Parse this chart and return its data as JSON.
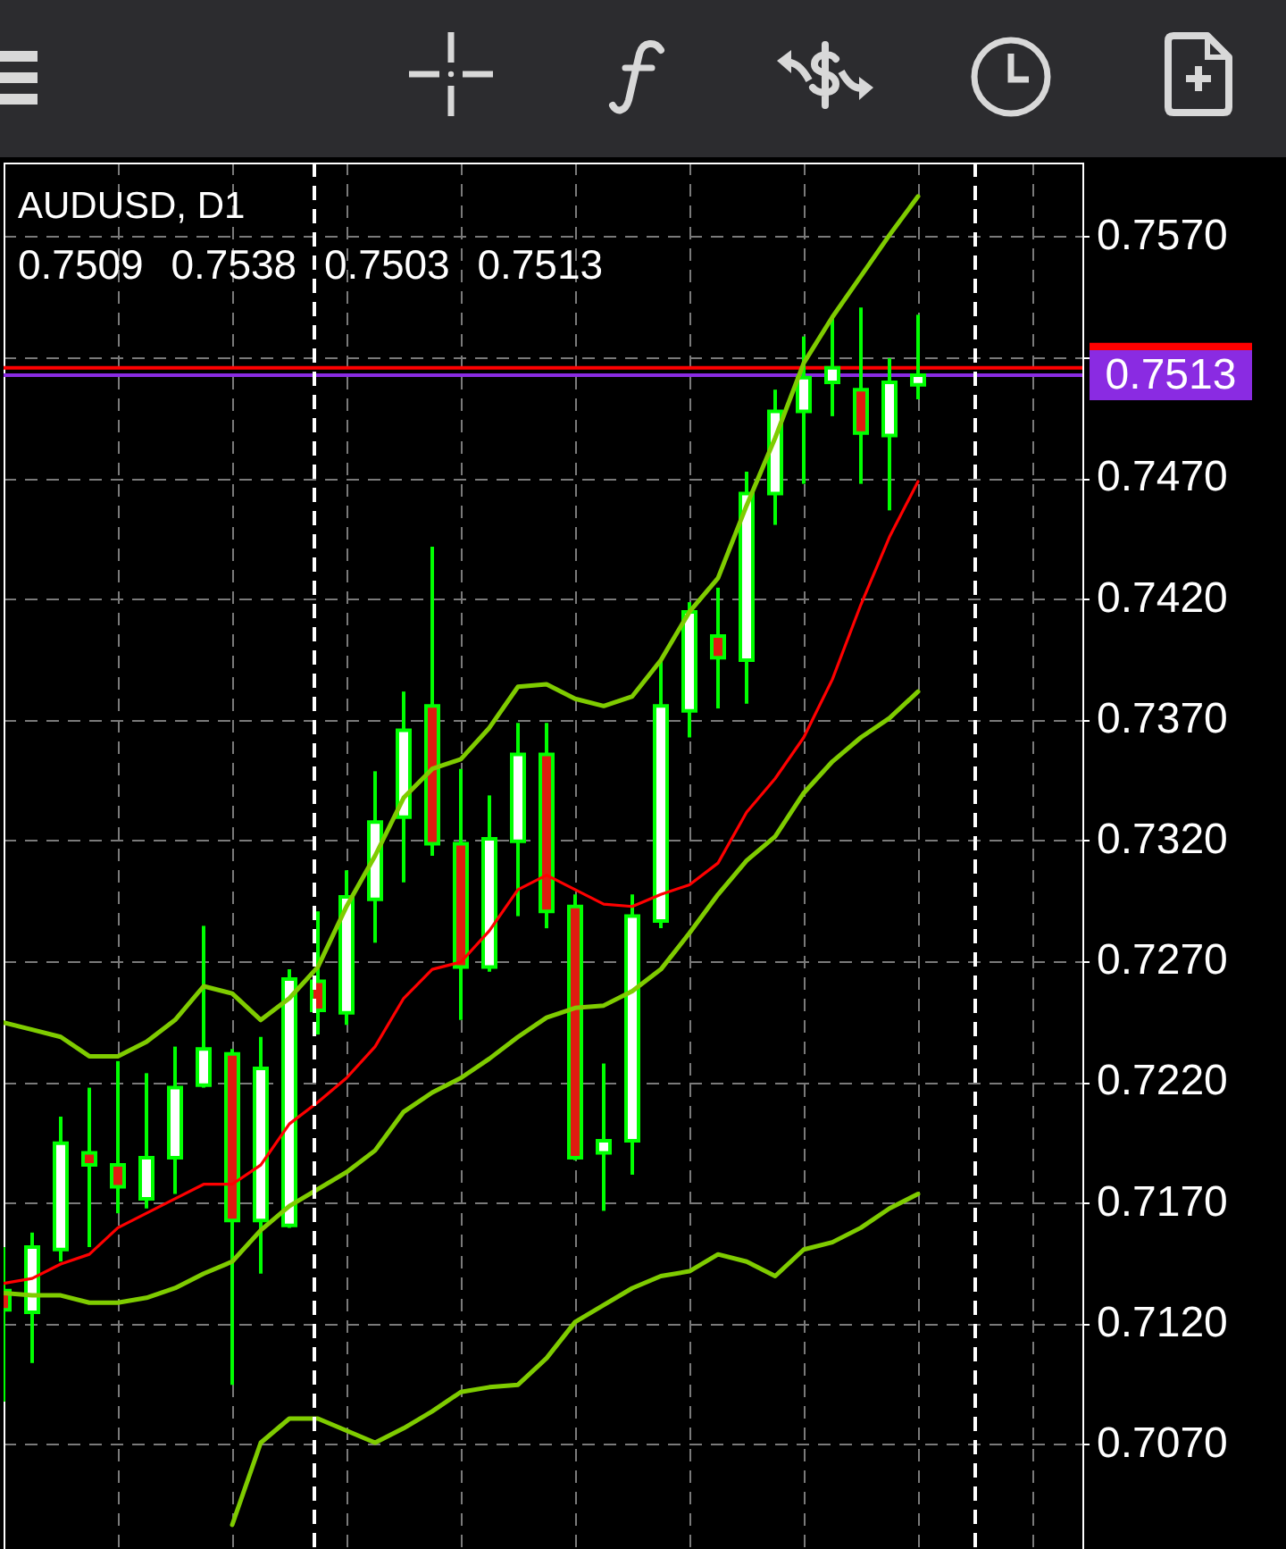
{
  "chart_data": {
    "type": "candlestick",
    "title": "AUDUSD, D1",
    "subtitle": "0.7509 0.7538 0.7503 0.7513",
    "categories": [
      null,
      null,
      null,
      null,
      null,
      null,
      null,
      null,
      null,
      null,
      null,
      null,
      null,
      null,
      null,
      null,
      null,
      null,
      null,
      null,
      null,
      null,
      null,
      null,
      null,
      null,
      null,
      null,
      null,
      null,
      null,
      null,
      null
    ],
    "ohlc": [
      [
        0.7134,
        0.7152,
        0.7088,
        0.7126
      ],
      [
        0.7125,
        0.7158,
        0.7104,
        0.7152
      ],
      [
        0.7151,
        0.7206,
        0.7146,
        0.7195
      ],
      [
        0.7191,
        0.7218,
        0.7152,
        0.7186
      ],
      [
        0.7186,
        0.7229,
        0.7166,
        0.7177
      ],
      [
        0.7172,
        0.7224,
        0.7168,
        0.7189
      ],
      [
        0.7189,
        0.7235,
        0.7174,
        0.7218
      ],
      [
        0.7219,
        0.7285,
        0.7218,
        0.7234
      ],
      [
        0.7232,
        0.7234,
        0.7095,
        0.7163
      ],
      [
        0.7163,
        0.7239,
        0.7141,
        0.7226
      ],
      [
        0.7161,
        0.7267,
        0.716,
        0.7263
      ],
      [
        0.7262,
        0.7291,
        0.724,
        0.725
      ],
      [
        0.7249,
        0.7308,
        0.7244,
        0.7297
      ],
      [
        0.7296,
        0.7349,
        0.7278,
        0.7328
      ],
      [
        0.733,
        0.7382,
        0.7303,
        0.7366
      ],
      [
        0.7376,
        0.7442,
        0.7314,
        0.7319
      ],
      [
        0.7319,
        0.735,
        0.7246,
        0.7268
      ],
      [
        0.7268,
        0.7339,
        0.7266,
        0.7321
      ],
      [
        0.732,
        0.7369,
        0.7289,
        0.7356
      ],
      [
        0.7356,
        0.7369,
        0.7284,
        0.7291
      ],
      [
        0.7293,
        0.7298,
        0.7188,
        0.7189
      ],
      [
        0.7191,
        0.7228,
        0.7167,
        0.7196
      ],
      [
        0.7196,
        0.7298,
        0.7182,
        0.7289
      ],
      [
        0.7287,
        0.7395,
        0.7284,
        0.7376
      ],
      [
        0.7374,
        0.7419,
        0.7363,
        0.7415
      ],
      [
        0.7405,
        0.7425,
        0.7375,
        0.7396
      ],
      [
        0.7395,
        0.7473,
        0.7377,
        0.7464
      ],
      [
        0.7464,
        0.7507,
        0.7451,
        0.7498
      ],
      [
        0.7498,
        0.7529,
        0.7468,
        0.7512
      ],
      [
        0.751,
        0.7537,
        0.7496,
        0.7516
      ],
      [
        0.7507,
        0.7541,
        0.7468,
        0.7489
      ],
      [
        0.7488,
        0.752,
        0.7457,
        0.751
      ],
      [
        0.7509,
        0.7538,
        0.7503,
        0.7513
      ]
    ],
    "colors": [
      "#e01b10",
      "#ffffff",
      "#ffffff",
      "#e01b10",
      "#e01b10",
      "#ffffff",
      "#ffffff",
      "#ffffff",
      "#e01b10",
      "#ffffff",
      "#ffffff",
      "#e01b10",
      "#ffffff",
      "#ffffff",
      "#ffffff",
      "#e01b10",
      "#e01b10",
      "#ffffff",
      "#ffffff",
      "#e01b10",
      "#e01b10",
      "#ffffff",
      "#ffffff",
      "#ffffff",
      "#ffffff",
      "#e01b10",
      "#ffffff",
      "#ffffff",
      "#ffffff",
      "#ffffff",
      "#e01b10",
      "#ffffff",
      "#ffffff"
    ],
    "color": "#00ff00",
    "series": [
      {
        "type": "line",
        "color": "#7fcc00",
        "values": [
          0.7245,
          0.7242,
          0.7239,
          0.7231,
          0.7231,
          0.7237,
          0.7246,
          0.726,
          0.7257,
          0.7246,
          0.7255,
          0.7268,
          0.7293,
          0.7314,
          0.7338,
          0.735,
          0.7354,
          0.7367,
          0.7384,
          0.7385,
          0.7379,
          0.7376,
          0.738,
          0.7395,
          0.7415,
          0.7429,
          0.7459,
          0.7487,
          0.7518,
          0.7537,
          0.7554,
          0.7571,
          0.7587
        ]
      },
      {
        "type": "line",
        "color": "#7fcc00",
        "values": [
          0.7133,
          0.7132,
          0.7132,
          0.7129,
          0.7129,
          0.7131,
          0.7135,
          0.7141,
          0.7146,
          0.7159,
          0.7169,
          0.7176,
          0.7183,
          0.7192,
          0.7208,
          0.7216,
          0.7222,
          0.723,
          0.7239,
          0.7247,
          0.7251,
          0.7252,
          0.7258,
          0.7267,
          0.7282,
          0.7298,
          0.7312,
          0.7322,
          0.734,
          0.7353,
          0.7363,
          0.7371,
          0.7382
        ]
      },
      {
        "type": "line",
        "color": "#7fcc00",
        "values": [
          null,
          null,
          null,
          null,
          null,
          null,
          null,
          null,
          0.7037,
          0.7071,
          0.7081,
          0.7081,
          0.7076,
          0.7071,
          0.7077,
          0.7084,
          0.7092,
          0.7094,
          0.7095,
          0.7106,
          0.7121,
          0.7128,
          0.7135,
          0.714,
          0.7142,
          0.7149,
          0.7146,
          0.714,
          0.7151,
          0.7154,
          0.716,
          0.7168,
          0.7174
        ]
      },
      {
        "type": "line",
        "color": "#ff0000",
        "values": [
          0.7137,
          0.7139,
          0.7145,
          0.7149,
          0.716,
          0.7166,
          0.7172,
          0.7178,
          0.7178,
          0.7186,
          0.7203,
          0.7212,
          0.7222,
          0.7235,
          0.7255,
          0.7267,
          0.727,
          0.7283,
          0.73,
          0.7306,
          0.73,
          0.7294,
          0.7293,
          0.7298,
          0.7302,
          0.7311,
          0.7332,
          0.7346,
          0.7363,
          0.7387,
          0.7418,
          0.7446,
          0.7469
        ]
      }
    ],
    "ylim": [
      0.7027,
      0.7601
    ],
    "yticks": [
      {
        "value": 0.707,
        "label": "0.7070"
      },
      {
        "value": 0.712,
        "label": "0.7120"
      },
      {
        "value": 0.717,
        "label": "0.7170"
      },
      {
        "value": 0.722,
        "label": "0.7220"
      },
      {
        "value": 0.727,
        "label": "0.7270"
      },
      {
        "value": 0.732,
        "label": "0.7320"
      },
      {
        "value": 0.737,
        "label": "0.7370"
      },
      {
        "value": 0.742,
        "label": "0.7420"
      },
      {
        "value": 0.747,
        "label": "0.7470"
      },
      {
        "value": 0.752,
        "label": null
      },
      {
        "value": 0.757,
        "label": "0.7570"
      }
    ],
    "tick_labels": "y",
    "grid": true,
    "ref_lines": [
      {
        "axis": "y",
        "value": 0.7516,
        "label": null,
        "color": "#ff0000"
      },
      {
        "axis": "y",
        "value": 0.7513,
        "label": "0.7513",
        "color": "#8a2be2"
      }
    ]
  }
}
